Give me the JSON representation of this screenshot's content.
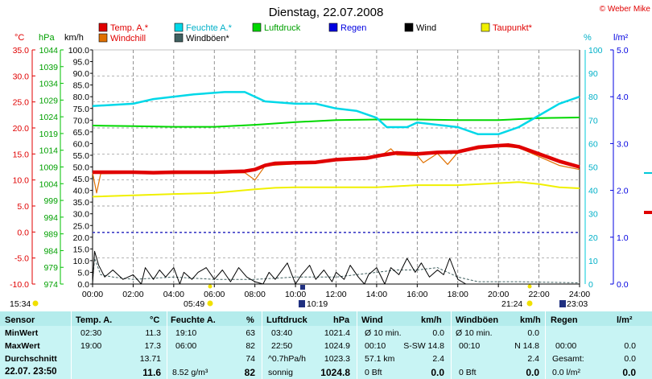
{
  "header": {
    "title": "Dienstag, 22.07.2008",
    "copyright": "© Weber Mike"
  },
  "legend": [
    {
      "label": "Temp. A.*",
      "color": "#e00000"
    },
    {
      "label": "Feuchte A.*",
      "color": "#00d8e8"
    },
    {
      "label": "Luftdruck",
      "color": "#00d800"
    },
    {
      "label": "Regen",
      "color": "#0000e0"
    },
    {
      "label": "Wind",
      "color": "#000000"
    },
    {
      "label": "Taupunkt*",
      "color": "#f0f000"
    },
    {
      "label": "Windchill",
      "color": "#e07000"
    },
    {
      "label": "Windböen*",
      "color": "#406060"
    }
  ],
  "axes": {
    "units": {
      "temp": "°C",
      "pressure": "hPa",
      "wind": "km/h",
      "humidity": "%",
      "rain": "l/m²"
    },
    "temp_ticks": [
      "35.0",
      "30.0",
      "25.0",
      "20.0",
      "15.0",
      "10.0",
      "5.0",
      "0.0",
      "-5.0",
      "-10.0"
    ],
    "pressure_ticks": [
      "1044",
      "1039",
      "1034",
      "1029",
      "1024",
      "1019",
      "1014",
      "1009",
      "1004",
      "999",
      "994",
      "989",
      "984",
      "979",
      "974"
    ],
    "wind_ticks": [
      "100.0",
      "95.0",
      "90.0",
      "85.0",
      "80.0",
      "75.0",
      "70.0",
      "65.0",
      "60.0",
      "55.0",
      "50.0",
      "45.0",
      "40.0",
      "35.0",
      "30.0",
      "25.0",
      "20.0",
      "15.0",
      "10.0",
      "5.0",
      "0.0"
    ],
    "humidity_ticks": [
      "100",
      "90",
      "80",
      "70",
      "60",
      "50",
      "40",
      "30",
      "20",
      "10",
      "0"
    ],
    "rain_ticks": [
      "5.0",
      "4.0",
      "3.0",
      "2.0",
      "1.0",
      "0.0"
    ],
    "time_ticks": [
      "00:00",
      "02:00",
      "04:00",
      "06:00",
      "08:00",
      "10:00",
      "12:00",
      "14:00",
      "16:00",
      "18:00",
      "20:00",
      "22:00",
      "24:00"
    ]
  },
  "sun": {
    "moonset": "15:34",
    "sunrise": "05:49",
    "moonrise_a": "10:19",
    "sunset": "21:24",
    "moonrise_b": "23:03"
  },
  "chart_data": {
    "type": "line",
    "x_unit": "hours",
    "series": [
      {
        "name": "Temp. A.*",
        "unit": "°C",
        "color": "#e00000",
        "points": [
          [
            0,
            11.5
          ],
          [
            2,
            11.5
          ],
          [
            3,
            11.4
          ],
          [
            4,
            11.5
          ],
          [
            6,
            11.5
          ],
          [
            7.5,
            11.7
          ],
          [
            8,
            12.0
          ],
          [
            8.5,
            12.8
          ],
          [
            9,
            13.2
          ],
          [
            10,
            13.3
          ],
          [
            11,
            13.4
          ],
          [
            12,
            13.9
          ],
          [
            13.5,
            14.2
          ],
          [
            14.3,
            14.8
          ],
          [
            15,
            15.2
          ],
          [
            16,
            15.0
          ],
          [
            17,
            15.3
          ],
          [
            18,
            15.4
          ],
          [
            19,
            16.3
          ],
          [
            20,
            16.6
          ],
          [
            20.5,
            16.7
          ],
          [
            21,
            16.4
          ],
          [
            22,
            15.0
          ],
          [
            23,
            13.6
          ],
          [
            24,
            12.5
          ]
        ]
      },
      {
        "name": "Windchill",
        "unit": "°C",
        "color": "#e07000",
        "points": [
          [
            0,
            11.4
          ],
          [
            0.2,
            7.5
          ],
          [
            0.4,
            11.2
          ],
          [
            2,
            11.3
          ],
          [
            3,
            11.2
          ],
          [
            6,
            11.3
          ],
          [
            7.5,
            11.4
          ],
          [
            8,
            10.0
          ],
          [
            8.5,
            12.7
          ],
          [
            10,
            13.1
          ],
          [
            12,
            13.7
          ],
          [
            13.5,
            14.0
          ],
          [
            14.2,
            14.6
          ],
          [
            14.7,
            16.0
          ],
          [
            15,
            14.8
          ],
          [
            16,
            14.7
          ],
          [
            16.3,
            13.3
          ],
          [
            17,
            15.1
          ],
          [
            17.5,
            13.0
          ],
          [
            18,
            15.3
          ],
          [
            19,
            16.0
          ],
          [
            20,
            16.5
          ],
          [
            21,
            16.2
          ],
          [
            22,
            14.5
          ],
          [
            23,
            12.8
          ],
          [
            24,
            12.0
          ]
        ]
      },
      {
        "name": "Feuchte A.*",
        "unit": "%",
        "color": "#00d8e8",
        "points": [
          [
            0,
            76
          ],
          [
            2,
            77
          ],
          [
            3,
            79
          ],
          [
            5,
            81
          ],
          [
            6.5,
            82
          ],
          [
            7.5,
            82
          ],
          [
            8.5,
            78
          ],
          [
            10,
            77
          ],
          [
            11,
            77
          ],
          [
            12,
            75
          ],
          [
            13,
            74
          ],
          [
            14,
            71
          ],
          [
            14.5,
            67
          ],
          [
            15.5,
            67
          ],
          [
            16,
            69
          ],
          [
            17,
            68
          ],
          [
            18,
            67
          ],
          [
            19,
            64
          ],
          [
            20,
            64
          ],
          [
            21,
            67
          ],
          [
            22,
            72
          ],
          [
            23,
            77
          ],
          [
            24,
            80
          ]
        ]
      },
      {
        "name": "Luftdruck",
        "unit": "hPa",
        "color": "#00d800",
        "points": [
          [
            0,
            1021.4
          ],
          [
            2,
            1021.2
          ],
          [
            4,
            1021.0
          ],
          [
            6,
            1021.0
          ],
          [
            8,
            1021.6
          ],
          [
            10,
            1022.4
          ],
          [
            12,
            1023.0
          ],
          [
            14,
            1023.2
          ],
          [
            16,
            1023.2
          ],
          [
            18,
            1023.0
          ],
          [
            20,
            1023.0
          ],
          [
            22,
            1023.6
          ],
          [
            24,
            1023.8
          ]
        ]
      },
      {
        "name": "Taupunkt*",
        "unit": "°C",
        "color": "#f0f000",
        "points": [
          [
            0,
            6.8
          ],
          [
            4,
            7.3
          ],
          [
            6,
            7.5
          ],
          [
            8,
            8.2
          ],
          [
            9,
            8.5
          ],
          [
            10,
            8.6
          ],
          [
            14,
            8.6
          ],
          [
            16,
            9.0
          ],
          [
            18,
            9.0
          ],
          [
            21,
            9.6
          ],
          [
            22,
            9.2
          ],
          [
            23,
            8.6
          ],
          [
            24,
            8.4
          ]
        ]
      },
      {
        "name": "Regen",
        "unit": "l/m²",
        "color": "#0000e0",
        "points": [
          [
            0,
            1.1
          ],
          [
            24,
            1.1
          ]
        ]
      },
      {
        "name": "Wind",
        "unit": "km/h",
        "color": "#000000",
        "points": [
          [
            0,
            0
          ],
          [
            0.1,
            14
          ],
          [
            0.3,
            8
          ],
          [
            0.6,
            3
          ],
          [
            1,
            6
          ],
          [
            1.5,
            2
          ],
          [
            2,
            4
          ],
          [
            2.4,
            0
          ],
          [
            2.6,
            7
          ],
          [
            3,
            2
          ],
          [
            3.3,
            6
          ],
          [
            3.6,
            3
          ],
          [
            4,
            7
          ],
          [
            4.3,
            0
          ],
          [
            4.5,
            5
          ],
          [
            4.9,
            2
          ],
          [
            5.2,
            5
          ],
          [
            5.6,
            7
          ],
          [
            6,
            2
          ],
          [
            6.4,
            6
          ],
          [
            6.8,
            1
          ],
          [
            7.2,
            7
          ],
          [
            7.6,
            3
          ],
          [
            8,
            1
          ],
          [
            8.4,
            0
          ],
          [
            8.7,
            5
          ],
          [
            9,
            2
          ],
          [
            9.6,
            9
          ],
          [
            10,
            0
          ],
          [
            10.3,
            4
          ],
          [
            10.7,
            8
          ],
          [
            11,
            2
          ],
          [
            11.4,
            6
          ],
          [
            11.8,
            1
          ],
          [
            12,
            5
          ],
          [
            12.4,
            2
          ],
          [
            12.7,
            8
          ],
          [
            13.1,
            3
          ],
          [
            13.4,
            0
          ],
          [
            13.6,
            4
          ],
          [
            14,
            7
          ],
          [
            14.4,
            0
          ],
          [
            14.7,
            7
          ],
          [
            15.1,
            4
          ],
          [
            15.5,
            11
          ],
          [
            15.9,
            5
          ],
          [
            16.2,
            9
          ],
          [
            16.6,
            3
          ],
          [
            17,
            6
          ],
          [
            17.3,
            4
          ],
          [
            17.6,
            11
          ],
          [
            18,
            2
          ],
          [
            18.4,
            0
          ],
          [
            24,
            0
          ]
        ]
      },
      {
        "name": "Windböen*",
        "unit": "km/h",
        "color": "#406060",
        "points": [
          [
            0,
            1
          ],
          [
            0.1,
            11
          ],
          [
            0.4,
            4
          ],
          [
            1,
            3
          ],
          [
            2,
            2
          ],
          [
            4,
            3
          ],
          [
            6,
            2
          ],
          [
            8,
            2
          ],
          [
            10,
            3
          ],
          [
            12,
            3
          ],
          [
            14,
            5
          ],
          [
            15,
            6
          ],
          [
            16,
            6
          ],
          [
            17,
            7
          ],
          [
            18,
            3
          ],
          [
            19,
            1
          ],
          [
            21,
            1
          ],
          [
            24,
            0.5
          ]
        ]
      }
    ]
  },
  "stats": {
    "sensor": {
      "header": "Sensor",
      "rows": [
        "MinWert",
        "MaxWert",
        "Durchschnitt",
        "22.07.  23:50"
      ]
    },
    "temp": {
      "header": "Temp. A.",
      "unit": "°C",
      "rows": [
        [
          "02:30",
          "11.3"
        ],
        [
          "19:00",
          "17.3"
        ],
        [
          "",
          "13.71"
        ],
        [
          "",
          "11.6"
        ]
      ]
    },
    "hum": {
      "header": "Feuchte A.",
      "unit": "%",
      "rows": [
        [
          "19:10",
          "63"
        ],
        [
          "06:00",
          "82"
        ],
        [
          "",
          "74"
        ],
        [
          "8.52 g/m³",
          "82"
        ]
      ]
    },
    "press": {
      "header": "Luftdruck",
      "unit": "hPa",
      "rows": [
        [
          "03:40",
          "1021.4"
        ],
        [
          "22:50",
          "1024.9"
        ],
        [
          "^0.7hPa/h",
          "1023.3"
        ],
        [
          "sonnig",
          "1024.8"
        ]
      ]
    },
    "wind": {
      "header": "Wind",
      "unit": "km/h",
      "rows": [
        [
          "Ø 10 min.",
          "",
          "0.0"
        ],
        [
          "00:10",
          "S-SW 14.8",
          ""
        ],
        [
          "57.1 km",
          "",
          "2.4"
        ],
        [
          "0 Bft",
          "",
          "0.0"
        ]
      ]
    },
    "gust": {
      "header": "Windböen",
      "unit": "km/h",
      "rows": [
        [
          "Ø 10 min.",
          "",
          "0.0"
        ],
        [
          "00:10",
          "N 14.8",
          ""
        ],
        [
          "",
          "",
          "2.4"
        ],
        [
          "0 Bft",
          "",
          "0.0"
        ]
      ]
    },
    "rain": {
      "header": "Regen",
      "unit": "l/m²",
      "rows": [
        [
          "",
          "",
          ""
        ],
        [
          "00:00",
          "",
          "0.0"
        ],
        [
          "Gesamt:",
          "",
          "0.0"
        ],
        [
          "0.0 l/m²",
          "",
          "0.0"
        ]
      ]
    }
  }
}
